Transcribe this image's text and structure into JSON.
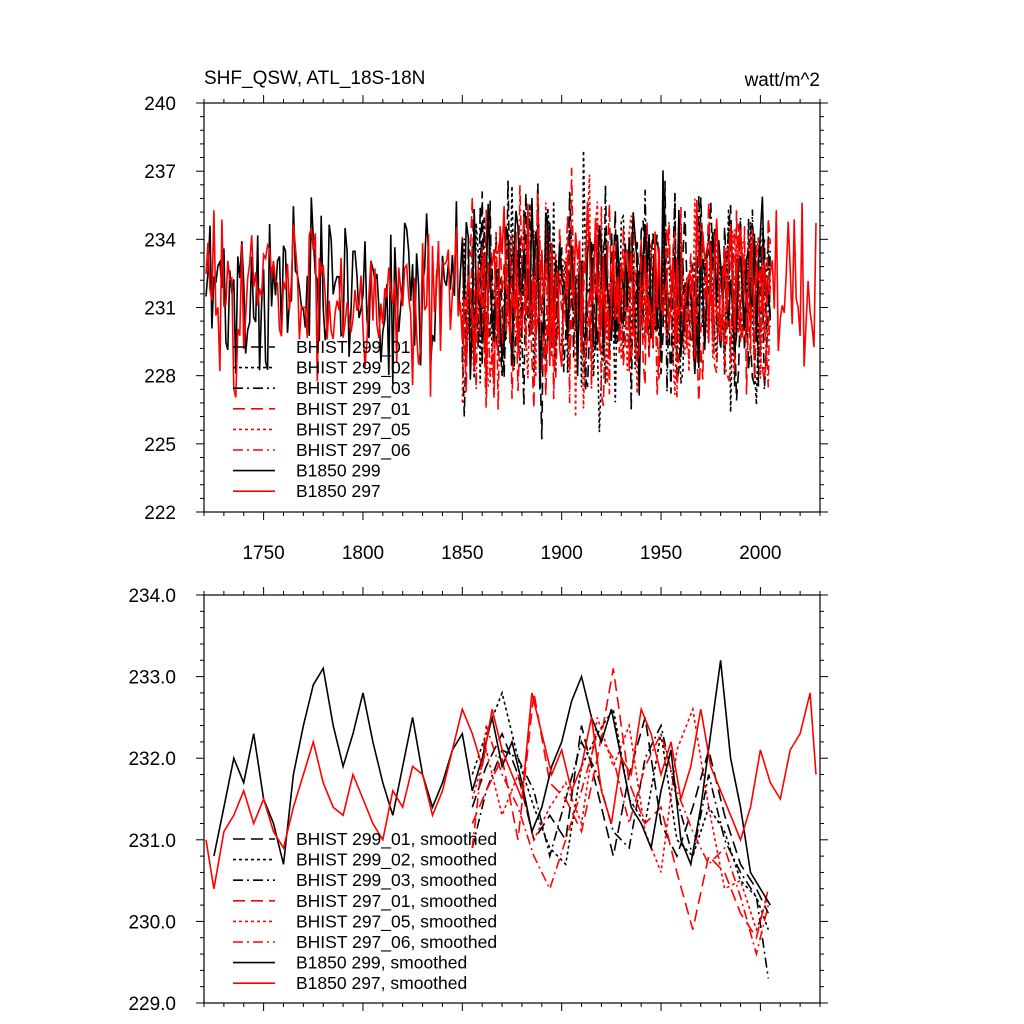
{
  "figure": {
    "title_left": "SHF_QSW, ATL_18S-18N",
    "title_right": "watt/m^2"
  },
  "colors": {
    "black": "#000000",
    "red": "#ff0000"
  },
  "chart_data": [
    {
      "type": "line",
      "title": "SHF_QSW, ATL_18S-18N",
      "units": "watt/m^2",
      "xlim": [
        1720,
        2030
      ],
      "ylim": [
        222,
        240
      ],
      "x_ticks": [
        1750,
        1800,
        1850,
        1900,
        1950,
        2000
      ],
      "x_tick_labels": [
        "1750",
        "1800",
        "1850",
        "1900",
        "1950",
        "2000"
      ],
      "y_ticks": [
        222,
        225,
        228,
        231,
        234,
        237,
        240
      ],
      "y_tick_labels": [
        "222",
        "225",
        "228",
        "231",
        "234",
        "237",
        "240"
      ],
      "legend_position": "lower-left",
      "series": [
        {
          "name": "BHIST 299_01",
          "color": "black",
          "dash": "long-dash",
          "x_range": [
            1850,
            2005
          ],
          "mean": 231.5,
          "spread": 4.0,
          "seed": 11
        },
        {
          "name": "BHIST 299_02",
          "color": "black",
          "dash": "dotted",
          "x_range": [
            1850,
            2005
          ],
          "mean": 231.5,
          "spread": 4.0,
          "seed": 23
        },
        {
          "name": "BHIST 299_03",
          "color": "black",
          "dash": "dash-dot",
          "x_range": [
            1850,
            2005
          ],
          "mean": 231.4,
          "spread": 4.0,
          "seed": 37
        },
        {
          "name": "BHIST 297_01",
          "color": "red",
          "dash": "long-dash",
          "x_range": [
            1850,
            2005
          ],
          "mean": 231.3,
          "spread": 3.8,
          "seed": 41
        },
        {
          "name": "BHIST 297_05",
          "color": "red",
          "dash": "dotted",
          "x_range": [
            1850,
            2005
          ],
          "mean": 231.4,
          "spread": 3.8,
          "seed": 53
        },
        {
          "name": "BHIST 297_06",
          "color": "red",
          "dash": "dash-dot",
          "x_range": [
            1850,
            2005
          ],
          "mean": 231.3,
          "spread": 3.8,
          "seed": 67
        },
        {
          "name": "B1850 299",
          "color": "black",
          "dash": "solid",
          "x_range": [
            1721,
            2005
          ],
          "mean": 231.8,
          "spread": 3.2,
          "seed": 71
        },
        {
          "name": "B1850 297",
          "color": "red",
          "dash": "solid",
          "x_range": [
            1721,
            2028
          ],
          "mean": 231.7,
          "spread": 3.0,
          "seed": 83
        }
      ]
    },
    {
      "type": "line",
      "xlim": [
        1720,
        2030
      ],
      "ylim": [
        229.0,
        234.0
      ],
      "x_ticks": [
        1750,
        1800,
        1850,
        1900,
        1950,
        2000
      ],
      "y_ticks": [
        229.0,
        230.0,
        231.0,
        232.0,
        233.0,
        234.0
      ],
      "y_tick_labels": [
        "229.0",
        "230.0",
        "231.0",
        "232.0",
        "233.0",
        "234.0"
      ],
      "legend_position": "lower-left",
      "series": [
        {
          "name": "BHIST 299_01, smoothed",
          "color": "black",
          "dash": "long-dash",
          "x": [
            1855,
            1862,
            1870,
            1878,
            1886,
            1894,
            1902,
            1910,
            1918,
            1926,
            1934,
            1942,
            1950,
            1958,
            1966,
            1974,
            1982,
            1990,
            1998,
            2004
          ],
          "y": [
            231.4,
            231.9,
            232.3,
            231.8,
            231.0,
            231.3,
            231.0,
            232.4,
            231.6,
            230.8,
            231.8,
            232.5,
            231.2,
            230.8,
            231.4,
            232.1,
            231.3,
            230.7,
            230.4,
            230.1
          ]
        },
        {
          "name": "BHIST 299_02, smoothed",
          "color": "black",
          "dash": "dotted",
          "x": [
            1855,
            1862,
            1870,
            1878,
            1886,
            1894,
            1902,
            1910,
            1918,
            1926,
            1934,
            1942,
            1950,
            1958,
            1966,
            1974,
            1982,
            1990,
            1998,
            2004
          ],
          "y": [
            231.8,
            232.3,
            232.8,
            232.0,
            231.4,
            230.9,
            230.7,
            231.9,
            232.3,
            232.6,
            231.5,
            231.2,
            232.3,
            231.0,
            230.8,
            231.4,
            231.1,
            230.5,
            230.3,
            229.9
          ]
        },
        {
          "name": "BHIST 299_03, smoothed",
          "color": "black",
          "dash": "dash-dot",
          "x": [
            1855,
            1862,
            1870,
            1878,
            1886,
            1894,
            1902,
            1910,
            1918,
            1926,
            1934,
            1942,
            1950,
            1958,
            1966,
            1974,
            1982,
            1990,
            1998,
            2004
          ],
          "y": [
            230.9,
            231.6,
            232.1,
            232.0,
            231.6,
            230.8,
            231.5,
            232.2,
            231.8,
            231.1,
            230.9,
            232.0,
            232.4,
            231.5,
            230.8,
            231.8,
            231.0,
            230.6,
            230.3,
            229.3
          ]
        },
        {
          "name": "BHIST 297_01, smoothed",
          "color": "red",
          "dash": "long-dash",
          "x": [
            1855,
            1862,
            1870,
            1878,
            1886,
            1894,
            1902,
            1910,
            1918,
            1926,
            1934,
            1942,
            1950,
            1958,
            1966,
            1974,
            1982,
            1990,
            1998,
            2004
          ],
          "y": [
            231.2,
            231.6,
            232.0,
            231.0,
            232.8,
            231.7,
            231.5,
            231.1,
            232.0,
            233.1,
            231.7,
            231.2,
            231.4,
            230.6,
            229.9,
            230.8,
            230.6,
            230.1,
            229.8,
            230.4
          ]
        },
        {
          "name": "BHIST 297_05, smoothed",
          "color": "red",
          "dash": "dotted",
          "x": [
            1855,
            1862,
            1870,
            1878,
            1886,
            1894,
            1902,
            1910,
            1918,
            1926,
            1934,
            1942,
            1950,
            1958,
            1966,
            1974,
            1982,
            1990,
            1998,
            2004
          ],
          "y": [
            231.5,
            232.1,
            231.3,
            231.8,
            231.0,
            231.4,
            231.7,
            231.2,
            232.5,
            231.9,
            232.4,
            231.1,
            230.6,
            232.1,
            232.6,
            231.4,
            230.4,
            230.5,
            229.9,
            230.3
          ]
        },
        {
          "name": "BHIST 297_06, smoothed",
          "color": "red",
          "dash": "dash-dot",
          "x": [
            1855,
            1862,
            1870,
            1878,
            1886,
            1894,
            1902,
            1910,
            1918,
            1926,
            1934,
            1942,
            1950,
            1958,
            1966,
            1974,
            1982,
            1990,
            1998,
            2004
          ],
          "y": [
            230.9,
            232.4,
            231.8,
            231.4,
            230.8,
            230.4,
            231.0,
            231.6,
            232.3,
            232.0,
            231.2,
            231.9,
            232.3,
            231.6,
            231.1,
            230.7,
            230.9,
            230.3,
            229.6,
            230.2
          ]
        },
        {
          "name": "B1850 299, smoothed",
          "color": "black",
          "dash": "solid",
          "x": [
            1725,
            1730,
            1735,
            1740,
            1745,
            1750,
            1755,
            1760,
            1765,
            1770,
            1775,
            1780,
            1785,
            1790,
            1795,
            1800,
            1805,
            1810,
            1815,
            1820,
            1825,
            1830,
            1835,
            1840,
            1845,
            1850,
            1855,
            1860,
            1865,
            1870,
            1875,
            1880,
            1885,
            1890,
            1895,
            1900,
            1905,
            1910,
            1915,
            1920,
            1925,
            1930,
            1935,
            1940,
            1945,
            1950,
            1955,
            1960,
            1965,
            1970,
            1975,
            1980,
            1985,
            1990,
            1995,
            2000,
            2005
          ],
          "y": [
            230.8,
            231.4,
            232.0,
            231.7,
            232.3,
            231.5,
            231.2,
            230.7,
            231.8,
            232.4,
            232.9,
            233.1,
            232.4,
            231.9,
            232.3,
            232.8,
            232.2,
            231.7,
            231.3,
            231.9,
            232.5,
            231.8,
            231.4,
            231.7,
            232.1,
            232.3,
            231.6,
            232.0,
            232.5,
            231.9,
            232.2,
            231.7,
            231.1,
            231.4,
            231.9,
            232.2,
            232.7,
            233.0,
            232.5,
            232.2,
            232.6,
            232.0,
            231.4,
            231.2,
            230.9,
            231.6,
            232.1,
            231.0,
            230.7,
            231.4,
            232.3,
            233.2,
            232.0,
            231.4,
            230.6,
            230.4,
            230.2
          ]
        },
        {
          "name": "B1850 297, smoothed",
          "color": "red",
          "dash": "solid",
          "x": [
            1721,
            1725,
            1730,
            1735,
            1740,
            1745,
            1750,
            1755,
            1760,
            1765,
            1770,
            1775,
            1780,
            1785,
            1790,
            1795,
            1800,
            1805,
            1810,
            1815,
            1820,
            1825,
            1830,
            1835,
            1840,
            1845,
            1850,
            1855,
            1860,
            1865,
            1870,
            1875,
            1880,
            1885,
            1890,
            1895,
            1900,
            1905,
            1910,
            1915,
            1920,
            1925,
            1930,
            1935,
            1940,
            1945,
            1950,
            1955,
            1960,
            1965,
            1970,
            1975,
            1980,
            1985,
            1990,
            1995,
            2000,
            2005,
            2010,
            2015,
            2020,
            2025,
            2028
          ],
          "y": [
            231.0,
            230.4,
            231.1,
            231.3,
            231.6,
            231.2,
            231.5,
            231.1,
            230.9,
            231.4,
            231.8,
            232.2,
            231.7,
            231.4,
            231.3,
            231.8,
            231.5,
            231.2,
            231.0,
            231.6,
            231.4,
            231.9,
            231.8,
            231.3,
            231.6,
            232.1,
            232.6,
            232.3,
            231.9,
            232.6,
            232.1,
            231.8,
            231.5,
            232.8,
            232.3,
            231.8,
            232.1,
            231.6,
            231.9,
            232.5,
            231.6,
            231.2,
            232.0,
            231.8,
            232.6,
            232.3,
            231.8,
            232.2,
            231.5,
            231.9,
            232.6,
            231.9,
            231.6,
            231.3,
            231.0,
            231.4,
            232.1,
            231.7,
            231.5,
            232.1,
            232.3,
            232.8,
            231.8
          ]
        }
      ]
    }
  ]
}
